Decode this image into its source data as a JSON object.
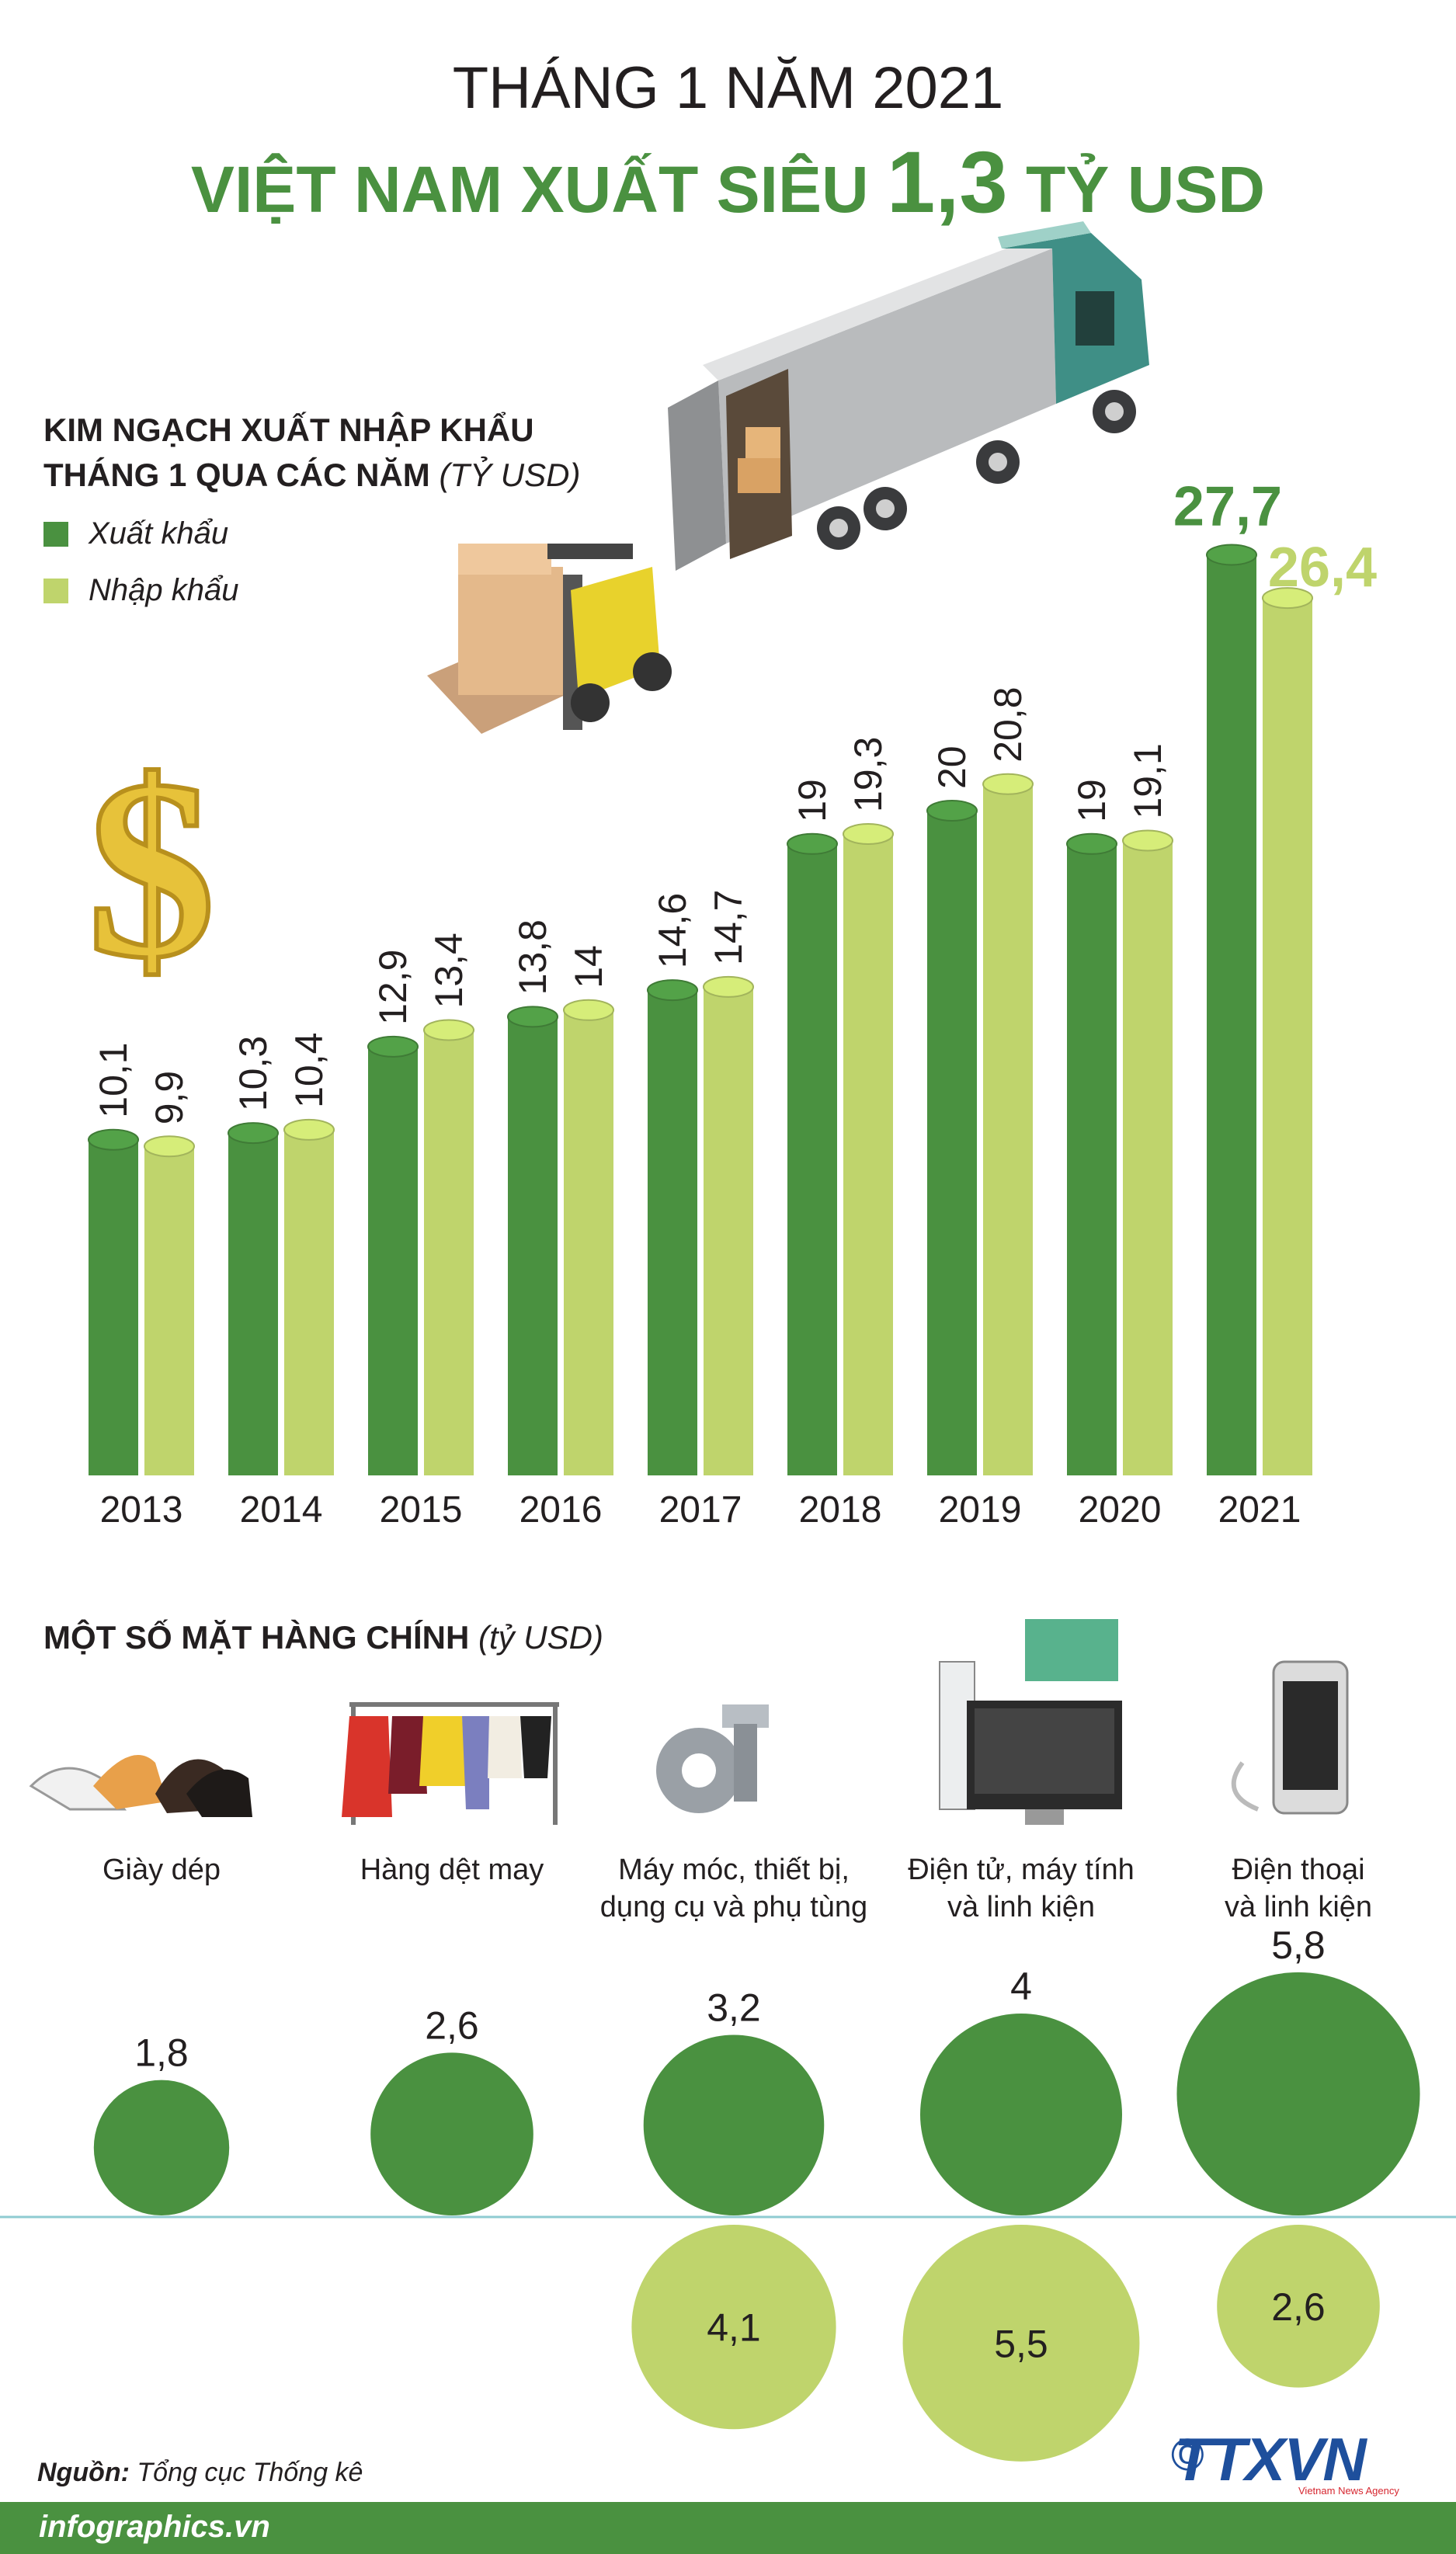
{
  "header": {
    "title_line1": "THÁNG 1 NĂM 2021",
    "title_line2_prefix": "VIỆT NAM XUẤT SIÊU",
    "title_line2_value": "1,3",
    "title_line2_suffix": "TỶ USD"
  },
  "colors": {
    "export": "#4a9140",
    "import": "#bfd46c",
    "text": "#231f20",
    "axis_line": "#8fcbd1"
  },
  "chart_data": [
    {
      "type": "bar",
      "title": "KIM NGẠCH XUẤT NHẬP KHẨU",
      "title_line2": "THÁNG 1 QUA CÁC NĂM",
      "unit": "(TỶ USD)",
      "categories": [
        "2013",
        "2014",
        "2015",
        "2016",
        "2017",
        "2018",
        "2019",
        "2020",
        "2021"
      ],
      "series": [
        {
          "name": "Xuất khẩu",
          "values": [
            10.1,
            10.3,
            12.9,
            13.8,
            14.6,
            19,
            20,
            19,
            27.7
          ],
          "labels": [
            "10,1",
            "10,3",
            "12,9",
            "13,8",
            "14,6",
            "19",
            "20",
            "19",
            "27,7"
          ]
        },
        {
          "name": "Nhập khẩu",
          "values": [
            9.9,
            10.4,
            13.4,
            14,
            14.7,
            19.3,
            20.8,
            19.1,
            26.4
          ],
          "labels": [
            "9,9",
            "10,4",
            "13,4",
            "14",
            "14,7",
            "19,3",
            "20,8",
            "19,1",
            "26,4"
          ]
        }
      ]
    },
    {
      "type": "bubble",
      "title": "MỘT SỐ MẶT HÀNG CHÍNH",
      "unit": "(tỷ USD)",
      "categories": [
        {
          "line1": "Giày dép",
          "line2": ""
        },
        {
          "line1": "Hàng dệt may",
          "line2": ""
        },
        {
          "line1": "Máy móc, thiết bị,",
          "line2": "dụng cụ và phụ tùng"
        },
        {
          "line1": "Điện tử, máy tính",
          "line2": "và linh kiện"
        },
        {
          "line1": "Điện thoại",
          "line2": "và linh kiện"
        }
      ],
      "series": [
        {
          "name": "Xuất khẩu",
          "values": [
            1.8,
            2.6,
            3.2,
            4,
            5.8
          ],
          "labels": [
            "1,8",
            "2,6",
            "3,2",
            "4",
            "5,8"
          ]
        },
        {
          "name": "Nhập khẩu",
          "values": [
            null,
            null,
            4.1,
            5.5,
            2.6
          ],
          "labels": [
            "",
            "",
            "4,1",
            "5,5",
            "2,6"
          ]
        }
      ]
    }
  ],
  "footer": {
    "source_label": "Nguồn:",
    "source_text": "Tổng cục Thống kê",
    "site": "infographics.vn",
    "agency": "TTXVN",
    "agency_sub": "Vietnam News Agency",
    "copyright": "©"
  },
  "icons": [
    "truck-icon",
    "forklift-icon",
    "dollar-icon",
    "shoes-icon",
    "clothes-rack-icon",
    "gears-icon",
    "computer-icon",
    "phone-icon"
  ]
}
